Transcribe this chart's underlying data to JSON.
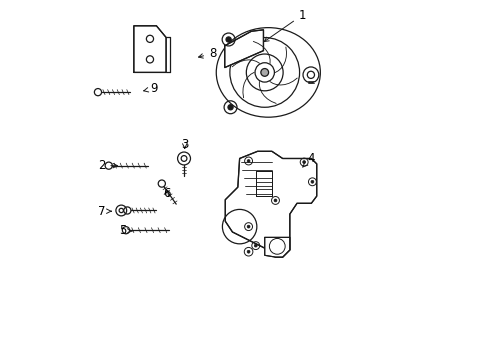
{
  "background_color": "#ffffff",
  "line_color": "#1a1a1a",
  "text_color": "#000000",
  "fig_width": 4.9,
  "fig_height": 3.6,
  "dpi": 100,
  "labels": {
    "1": [
      0.695,
      0.935,
      0.645,
      0.875
    ],
    "2": [
      0.105,
      0.545,
      0.175,
      0.545
    ],
    "3": [
      0.335,
      0.595,
      0.335,
      0.635
    ],
    "4": [
      0.69,
      0.565,
      0.665,
      0.53
    ],
    "5": [
      0.165,
      0.36,
      0.22,
      0.36
    ],
    "6": [
      0.295,
      0.46,
      0.31,
      0.47
    ],
    "7": [
      0.11,
      0.415,
      0.175,
      0.415
    ],
    "8": [
      0.42,
      0.855,
      0.365,
      0.835
    ],
    "9": [
      0.245,
      0.755,
      0.215,
      0.745
    ]
  }
}
